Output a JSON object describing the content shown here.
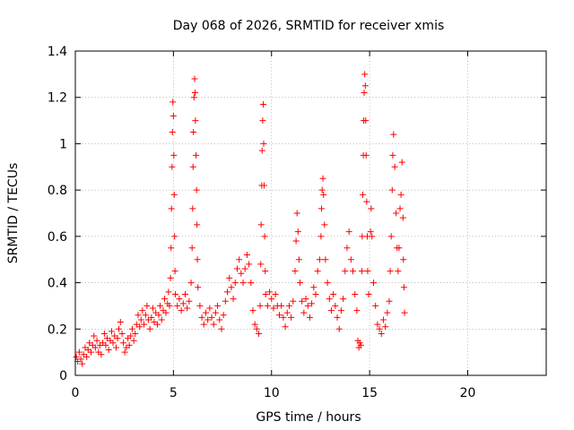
{
  "chart_data": {
    "type": "scatter",
    "title": "Day 068 of 2026, SRMTID for receiver xmis",
    "xlabel": "GPS time / hours",
    "ylabel": "SRMTID / TECUs",
    "xlim": [
      0,
      24
    ],
    "ylim": [
      0,
      1.4
    ],
    "xticks": [
      0,
      5,
      10,
      15,
      20
    ],
    "yticks": [
      0,
      0.2,
      0.4,
      0.6,
      0.8,
      1,
      1.2,
      1.4
    ],
    "xtick_labels": [
      "0",
      "5",
      "10",
      "15",
      "20"
    ],
    "ytick_labels": [
      "0",
      "0.2",
      "0.4",
      "0.6",
      "0.8",
      "1",
      "1.2",
      "1.4"
    ],
    "grid": true,
    "marker": "+",
    "series": [
      {
        "name": "SRMTID",
        "color": "#ff0000",
        "points": [
          [
            0.05,
            0.08
          ],
          [
            0.12,
            0.06
          ],
          [
            0.2,
            0.1
          ],
          [
            0.28,
            0.07
          ],
          [
            0.35,
            0.05
          ],
          [
            0.42,
            0.09
          ],
          [
            0.5,
            0.12
          ],
          [
            0.58,
            0.08
          ],
          [
            0.65,
            0.11
          ],
          [
            0.72,
            0.14
          ],
          [
            0.8,
            0.1
          ],
          [
            0.88,
            0.13
          ],
          [
            0.95,
            0.17
          ],
          [
            1.02,
            0.12
          ],
          [
            1.1,
            0.15
          ],
          [
            1.18,
            0.1
          ],
          [
            1.25,
            0.13
          ],
          [
            1.32,
            0.09
          ],
          [
            1.4,
            0.14
          ],
          [
            1.48,
            0.18
          ],
          [
            1.55,
            0.13
          ],
          [
            1.62,
            0.16
          ],
          [
            1.7,
            0.11
          ],
          [
            1.78,
            0.15
          ],
          [
            1.85,
            0.19
          ],
          [
            1.92,
            0.14
          ],
          [
            2.0,
            0.17
          ],
          [
            2.08,
            0.12
          ],
          [
            2.15,
            0.16
          ],
          [
            2.22,
            0.2
          ],
          [
            2.3,
            0.23
          ],
          [
            2.38,
            0.18
          ],
          [
            2.45,
            0.14
          ],
          [
            2.52,
            0.1
          ],
          [
            2.6,
            0.12
          ],
          [
            2.68,
            0.16
          ],
          [
            2.75,
            0.13
          ],
          [
            2.82,
            0.17
          ],
          [
            2.9,
            0.2
          ],
          [
            2.98,
            0.15
          ],
          [
            3.05,
            0.18
          ],
          [
            3.12,
            0.22
          ],
          [
            3.2,
            0.26
          ],
          [
            3.28,
            0.21
          ],
          [
            3.35,
            0.24
          ],
          [
            3.42,
            0.28
          ],
          [
            3.5,
            0.22
          ],
          [
            3.58,
            0.26
          ],
          [
            3.65,
            0.3
          ],
          [
            3.72,
            0.24
          ],
          [
            3.8,
            0.2
          ],
          [
            3.88,
            0.25
          ],
          [
            3.95,
            0.29
          ],
          [
            4.02,
            0.23
          ],
          [
            4.1,
            0.27
          ],
          [
            4.18,
            0.22
          ],
          [
            4.25,
            0.26
          ],
          [
            4.32,
            0.3
          ],
          [
            4.4,
            0.24
          ],
          [
            4.48,
            0.28
          ],
          [
            4.55,
            0.33
          ],
          [
            4.62,
            0.27
          ],
          [
            4.7,
            0.31
          ],
          [
            4.75,
            0.36
          ],
          [
            4.8,
            0.3
          ],
          [
            4.85,
            0.42
          ],
          [
            4.88,
            0.55
          ],
          [
            4.9,
            0.72
          ],
          [
            4.93,
            0.9
          ],
          [
            4.95,
            1.05
          ],
          [
            4.97,
            1.18
          ],
          [
            5.0,
            1.12
          ],
          [
            5.02,
            0.95
          ],
          [
            5.04,
            0.78
          ],
          [
            5.06,
            0.6
          ],
          [
            5.08,
            0.45
          ],
          [
            5.1,
            0.35
          ],
          [
            5.2,
            0.3
          ],
          [
            5.3,
            0.33
          ],
          [
            5.4,
            0.28
          ],
          [
            5.5,
            0.31
          ],
          [
            5.6,
            0.35
          ],
          [
            5.7,
            0.29
          ],
          [
            5.8,
            0.32
          ],
          [
            5.9,
            0.4
          ],
          [
            5.95,
            0.55
          ],
          [
            5.98,
            0.72
          ],
          [
            6.0,
            0.9
          ],
          [
            6.02,
            1.05
          ],
          [
            6.05,
            1.2
          ],
          [
            6.08,
            1.28
          ],
          [
            6.1,
            1.22
          ],
          [
            6.12,
            1.1
          ],
          [
            6.15,
            0.95
          ],
          [
            6.18,
            0.8
          ],
          [
            6.2,
            0.65
          ],
          [
            6.22,
            0.5
          ],
          [
            6.25,
            0.38
          ],
          [
            6.35,
            0.3
          ],
          [
            6.45,
            0.25
          ],
          [
            6.55,
            0.22
          ],
          [
            6.65,
            0.27
          ],
          [
            6.75,
            0.24
          ],
          [
            6.85,
            0.29
          ],
          [
            6.95,
            0.25
          ],
          [
            7.05,
            0.22
          ],
          [
            7.15,
            0.27
          ],
          [
            7.25,
            0.3
          ],
          [
            7.35,
            0.24
          ],
          [
            7.45,
            0.2
          ],
          [
            7.55,
            0.26
          ],
          [
            7.65,
            0.32
          ],
          [
            7.75,
            0.36
          ],
          [
            7.85,
            0.42
          ],
          [
            7.95,
            0.38
          ],
          [
            8.05,
            0.33
          ],
          [
            8.15,
            0.4
          ],
          [
            8.25,
            0.46
          ],
          [
            8.35,
            0.5
          ],
          [
            8.45,
            0.44
          ],
          [
            8.55,
            0.4
          ],
          [
            8.65,
            0.46
          ],
          [
            8.75,
            0.52
          ],
          [
            8.85,
            0.48
          ],
          [
            8.95,
            0.4
          ],
          [
            9.05,
            0.28
          ],
          [
            9.15,
            0.22
          ],
          [
            9.25,
            0.2
          ],
          [
            9.35,
            0.18
          ],
          [
            9.42,
            0.3
          ],
          [
            9.45,
            0.48
          ],
          [
            9.47,
            0.65
          ],
          [
            9.5,
            0.82
          ],
          [
            9.52,
            0.97
          ],
          [
            9.55,
            1.1
          ],
          [
            9.58,
            1.17
          ],
          [
            9.6,
            1.0
          ],
          [
            9.62,
            0.82
          ],
          [
            9.65,
            0.6
          ],
          [
            9.68,
            0.45
          ],
          [
            9.7,
            0.35
          ],
          [
            9.8,
            0.3
          ],
          [
            9.9,
            0.36
          ],
          [
            10.0,
            0.33
          ],
          [
            10.1,
            0.29
          ],
          [
            10.2,
            0.35
          ],
          [
            10.3,
            0.3
          ],
          [
            10.4,
            0.26
          ],
          [
            10.5,
            0.3
          ],
          [
            10.6,
            0.25
          ],
          [
            10.7,
            0.21
          ],
          [
            10.8,
            0.27
          ],
          [
            10.9,
            0.3
          ],
          [
            11.0,
            0.25
          ],
          [
            11.1,
            0.32
          ],
          [
            11.2,
            0.45
          ],
          [
            11.25,
            0.58
          ],
          [
            11.3,
            0.7
          ],
          [
            11.35,
            0.62
          ],
          [
            11.4,
            0.5
          ],
          [
            11.45,
            0.4
          ],
          [
            11.55,
            0.32
          ],
          [
            11.65,
            0.27
          ],
          [
            11.75,
            0.33
          ],
          [
            11.85,
            0.3
          ],
          [
            11.95,
            0.25
          ],
          [
            12.05,
            0.31
          ],
          [
            12.15,
            0.38
          ],
          [
            12.25,
            0.35
          ],
          [
            12.35,
            0.45
          ],
          [
            12.45,
            0.5
          ],
          [
            12.52,
            0.6
          ],
          [
            12.55,
            0.72
          ],
          [
            12.58,
            0.8
          ],
          [
            12.62,
            0.85
          ],
          [
            12.65,
            0.78
          ],
          [
            12.7,
            0.65
          ],
          [
            12.75,
            0.5
          ],
          [
            12.85,
            0.4
          ],
          [
            12.95,
            0.33
          ],
          [
            13.05,
            0.28
          ],
          [
            13.15,
            0.35
          ],
          [
            13.25,
            0.3
          ],
          [
            13.35,
            0.25
          ],
          [
            13.45,
            0.2
          ],
          [
            13.55,
            0.28
          ],
          [
            13.65,
            0.33
          ],
          [
            13.75,
            0.45
          ],
          [
            13.85,
            0.55
          ],
          [
            13.95,
            0.62
          ],
          [
            14.05,
            0.5
          ],
          [
            14.15,
            0.45
          ],
          [
            14.25,
            0.35
          ],
          [
            14.35,
            0.28
          ],
          [
            14.4,
            0.15
          ],
          [
            14.45,
            0.12
          ],
          [
            14.5,
            0.14
          ],
          [
            14.55,
            0.13
          ],
          [
            14.6,
            0.45
          ],
          [
            14.62,
            0.6
          ],
          [
            14.65,
            0.78
          ],
          [
            14.68,
            0.95
          ],
          [
            14.7,
            1.1
          ],
          [
            14.72,
            1.22
          ],
          [
            14.75,
            1.3
          ],
          [
            14.78,
            1.25
          ],
          [
            14.8,
            1.1
          ],
          [
            14.82,
            0.95
          ],
          [
            14.85,
            0.75
          ],
          [
            14.88,
            0.6
          ],
          [
            14.9,
            0.45
          ],
          [
            14.95,
            0.35
          ],
          [
            15.05,
            0.62
          ],
          [
            15.08,
            0.72
          ],
          [
            15.12,
            0.6
          ],
          [
            15.2,
            0.4
          ],
          [
            15.3,
            0.3
          ],
          [
            15.4,
            0.22
          ],
          [
            15.5,
            0.2
          ],
          [
            15.6,
            0.18
          ],
          [
            15.7,
            0.24
          ],
          [
            15.8,
            0.21
          ],
          [
            15.9,
            0.27
          ],
          [
            16.0,
            0.32
          ],
          [
            16.05,
            0.45
          ],
          [
            16.1,
            0.6
          ],
          [
            16.15,
            0.8
          ],
          [
            16.18,
            0.95
          ],
          [
            16.22,
            1.04
          ],
          [
            16.28,
            0.9
          ],
          [
            16.35,
            0.7
          ],
          [
            16.4,
            0.55
          ],
          [
            16.45,
            0.45
          ],
          [
            16.5,
            0.55
          ],
          [
            16.55,
            0.72
          ],
          [
            16.6,
            0.78
          ],
          [
            16.65,
            0.92
          ],
          [
            16.7,
            0.68
          ],
          [
            16.72,
            0.5
          ],
          [
            16.75,
            0.38
          ],
          [
            16.78,
            0.27
          ]
        ]
      }
    ]
  }
}
